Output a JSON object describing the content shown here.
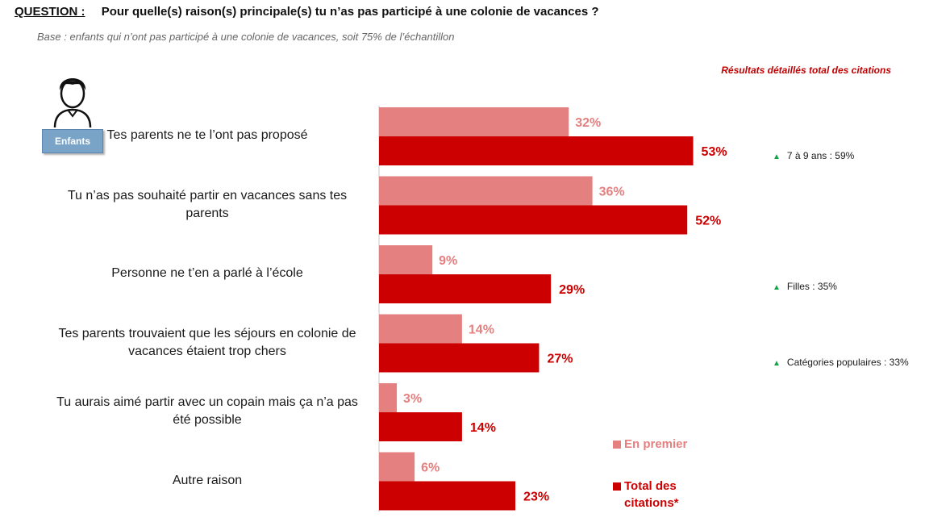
{
  "header": {
    "question_label": "QUESTION :",
    "question_text": "Pour quelle(s) raison(s) principale(s) tu n’as pas participé à une colonie de vacances ?",
    "base_text": "Base : enfants qui n’ont pas participé à une colonie de vacances, soit 75% de l’échantillon",
    "results_note": "Résultats détaillés total des citations",
    "badge_label": "Enfants"
  },
  "chart_data": {
    "type": "bar",
    "orientation": "horizontal",
    "categories": [
      "Tes parents ne te l’ont pas proposé",
      "Tu n’as pas souhaité partir en vacances sans tes parents",
      "Personne ne t’en a parlé à l’école",
      "Tes parents trouvaient que les séjours en colonie de vacances étaient trop chers",
      "Tu aurais aimé partir avec un copain mais ça n’a pas été possible",
      "Autre raison"
    ],
    "series": [
      {
        "name": "En premier",
        "values": [
          32,
          36,
          9,
          14,
          3,
          6
        ],
        "color": "#e58080"
      },
      {
        "name": "Total des citations*",
        "values": [
          53,
          52,
          29,
          27,
          14,
          23
        ],
        "color": "#cc0000"
      }
    ],
    "value_suffix": "%",
    "xlim": [
      0,
      100
    ],
    "grid": false,
    "legend": "bottom-right"
  },
  "notes": [
    {
      "category_index": 0,
      "text": "7 à 9 ans : 59%"
    },
    {
      "category_index": 2,
      "text": "Filles : 35%"
    },
    {
      "category_index": 3,
      "text": "Catégories populaires : 33%"
    }
  ],
  "colors": {
    "first": "#e58080",
    "total": "#cc0000",
    "note_marker": "#17a34a",
    "badge": "#7aa3c8"
  },
  "icons": {
    "avatar": "boy-avatar-icon",
    "note_marker": "green-triangle-icon"
  }
}
